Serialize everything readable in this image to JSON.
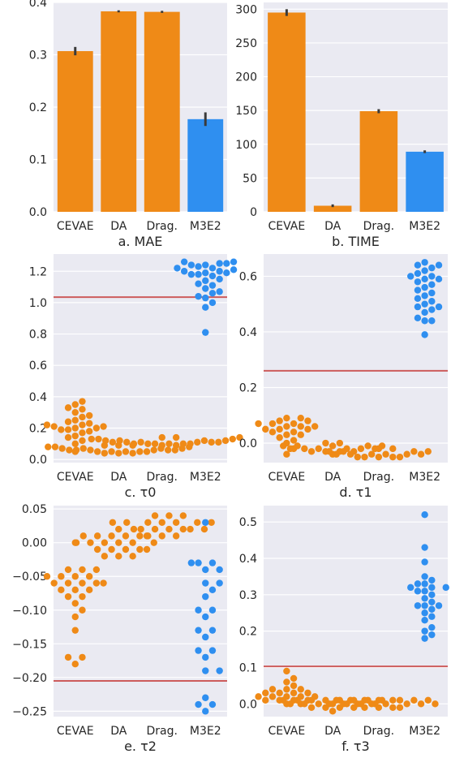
{
  "chart_data": [
    {
      "type": "bar",
      "title": "a. MAE",
      "categories": [
        "CEVAE",
        "DA",
        "Drag.",
        "M3E2"
      ],
      "values": [
        0.307,
        0.383,
        0.382,
        0.177
      ],
      "error": [
        0.008,
        0.002,
        0.002,
        0.013
      ],
      "colors": [
        "#ef8a17",
        "#ef8a17",
        "#ef8a17",
        "#2f8ff0"
      ],
      "ylim": [
        0,
        0.4
      ],
      "yticks": [
        "0.0",
        "0.1",
        "0.2",
        "0.3",
        "0.4"
      ],
      "ytick_values": [
        0,
        0.1,
        0.2,
        0.3,
        0.4
      ]
    },
    {
      "type": "bar",
      "title": "b. TIME",
      "categories": [
        "CEVAE",
        "DA",
        "Drag.",
        "M3E2"
      ],
      "values": [
        295,
        9,
        149,
        89
      ],
      "error": [
        5,
        2,
        3,
        2
      ],
      "colors": [
        "#ef8a17",
        "#ef8a17",
        "#ef8a17",
        "#2f8ff0"
      ],
      "ylim": [
        0,
        310
      ],
      "yticks": [
        "0",
        "50",
        "100",
        "150",
        "200",
        "250",
        "300"
      ],
      "ytick_values": [
        0,
        50,
        100,
        150,
        200,
        250,
        300
      ]
    },
    {
      "type": "scatter",
      "title": "c. τ0",
      "categories": [
        "CEVAE",
        "DA",
        "Drag.",
        "M3E2"
      ],
      "colors": [
        "#ef8a17",
        "#ef8a17",
        "#ef8a17",
        "#2f8ff0"
      ],
      "reference_line": 1.035,
      "ylim": [
        -0.02,
        1.31
      ],
      "yticks": [
        "0.0",
        "0.2",
        "0.4",
        "0.6",
        "0.8",
        "1.0",
        "1.2"
      ],
      "ytick_values": [
        0,
        0.2,
        0.4,
        0.6,
        0.8,
        1.0,
        1.2
      ],
      "points": [
        [
          0.05,
          0.1,
          0.12,
          0.14,
          0.15,
          0.17,
          0.18,
          0.19,
          0.19,
          0.2,
          0.2,
          0.21,
          0.21,
          0.22,
          0.22,
          0.23,
          0.24,
          0.25,
          0.27,
          0.28,
          0.3,
          0.32,
          0.33,
          0.35,
          0.37
        ],
        [
          0.04,
          0.04,
          0.04,
          0.05,
          0.05,
          0.05,
          0.05,
          0.05,
          0.06,
          0.06,
          0.06,
          0.06,
          0.06,
          0.06,
          0.07,
          0.07,
          0.07,
          0.07,
          0.08,
          0.08,
          0.08,
          0.09,
          0.09,
          0.09
        ],
        [
          0.09,
          0.09,
          0.1,
          0.1,
          0.1,
          0.1,
          0.1,
          0.1,
          0.11,
          0.11,
          0.11,
          0.11,
          0.11,
          0.11,
          0.12,
          0.12,
          0.12,
          0.12,
          0.13,
          0.13,
          0.13,
          0.14,
          0.14,
          0.14
        ],
        [
          0.81,
          0.97,
          1.0,
          1.03,
          1.04,
          1.06,
          1.07,
          1.09,
          1.11,
          1.12,
          1.14,
          1.15,
          1.17,
          1.18,
          1.18,
          1.19,
          1.19,
          1.2,
          1.2,
          1.21,
          1.22,
          1.22,
          1.23,
          1.24,
          1.24,
          1.25,
          1.25,
          1.26,
          1.26
        ]
      ]
    },
    {
      "type": "scatter",
      "title": "d. τ1",
      "categories": [
        "CEVAE",
        "DA",
        "Drag.",
        "M3E2"
      ],
      "colors": [
        "#ef8a17",
        "#ef8a17",
        "#ef8a17",
        "#2f8ff0"
      ],
      "reference_line": 0.26,
      "ylim": [
        -0.07,
        0.68
      ],
      "yticks": [
        "0.0",
        "0.2",
        "0.4",
        "0.6"
      ],
      "ytick_values": [
        0,
        0.2,
        0.4,
        0.6
      ],
      "points": [
        [
          -0.04,
          -0.02,
          0.0,
          0.01,
          0.02,
          0.03,
          0.03,
          0.04,
          0.04,
          0.05,
          0.05,
          0.05,
          0.06,
          0.06,
          0.06,
          0.07,
          0.07,
          0.07,
          0.08,
          0.08,
          0.09,
          0.09
        ],
        [
          -0.04,
          -0.03,
          -0.03,
          -0.03,
          -0.03,
          -0.02,
          -0.02,
          -0.02,
          -0.02,
          -0.02,
          -0.02,
          -0.01,
          -0.01,
          -0.01,
          -0.01,
          -0.01,
          0.0,
          0.0
        ],
        [
          -0.05,
          -0.05,
          -0.05,
          -0.05,
          -0.05,
          -0.04,
          -0.04,
          -0.04,
          -0.04,
          -0.04,
          -0.04,
          -0.03,
          -0.03,
          -0.03,
          -0.03,
          -0.02,
          -0.02
        ],
        [
          0.39,
          0.44,
          0.44,
          0.45,
          0.47,
          0.48,
          0.49,
          0.49,
          0.5,
          0.51,
          0.52,
          0.53,
          0.54,
          0.55,
          0.56,
          0.57,
          0.58,
          0.59,
          0.59,
          0.6,
          0.6,
          0.61,
          0.62,
          0.63,
          0.64,
          0.64,
          0.65
        ]
      ]
    },
    {
      "type": "scatter",
      "title": "e. τ2",
      "categories": [
        "CEVAE",
        "DA",
        "Drag.",
        "M3E2"
      ],
      "colors": [
        "#ef8a17",
        "#ef8a17",
        "#ef8a17",
        "#2f8ff0"
      ],
      "reference_line": -0.205,
      "ylim": [
        -0.258,
        0.055
      ],
      "yticks": [
        "0.05",
        "0.00",
        "−0.05",
        "−0.10",
        "−0.15",
        "−0.20",
        "−0.25"
      ],
      "ytick_values": [
        0.05,
        0,
        -0.05,
        -0.1,
        -0.15,
        -0.2,
        -0.25
      ],
      "points": [
        [
          -0.18,
          -0.17,
          -0.17,
          -0.13,
          -0.11,
          -0.1,
          -0.09,
          -0.08,
          -0.08,
          -0.07,
          -0.07,
          -0.07,
          -0.06,
          -0.06,
          -0.06,
          -0.06,
          -0.06,
          -0.05,
          -0.05,
          -0.05,
          -0.05,
          -0.04,
          -0.04,
          -0.04,
          0.0
        ],
        [
          -0.02,
          -0.02,
          -0.02,
          -0.01,
          -0.01,
          -0.01,
          -0.01,
          -0.01,
          0.0,
          0.0,
          0.0,
          0.0,
          0.0,
          0.0,
          0.01,
          0.01,
          0.01,
          0.01,
          0.01,
          0.01,
          0.02
        ],
        [
          0.01,
          0.01,
          0.01,
          0.02,
          0.02,
          0.02,
          0.02,
          0.02,
          0.02,
          0.02,
          0.03,
          0.03,
          0.03,
          0.03,
          0.03,
          0.03,
          0.03,
          0.04,
          0.04,
          0.04
        ],
        [
          -0.25,
          -0.24,
          -0.24,
          -0.23,
          -0.19,
          -0.19,
          -0.17,
          -0.16,
          -0.16,
          -0.14,
          -0.13,
          -0.13,
          -0.11,
          -0.1,
          -0.1,
          -0.08,
          -0.07,
          -0.06,
          -0.06,
          -0.04,
          -0.04,
          -0.03,
          -0.03,
          -0.03,
          0.03
        ]
      ]
    },
    {
      "type": "scatter",
      "title": "f. τ3",
      "categories": [
        "CEVAE",
        "DA",
        "Drag.",
        "M3E2"
      ],
      "colors": [
        "#ef8a17",
        "#ef8a17",
        "#ef8a17",
        "#2f8ff0"
      ],
      "reference_line": 0.103,
      "ylim": [
        -0.035,
        0.545
      ],
      "yticks": [
        "0.0",
        "0.1",
        "0.2",
        "0.3",
        "0.4",
        "0.5"
      ],
      "ytick_values": [
        0,
        0.1,
        0.2,
        0.3,
        0.4,
        0.5
      ],
      "points": [
        [
          0.0,
          0.0,
          0.01,
          0.01,
          0.01,
          0.01,
          0.02,
          0.02,
          0.02,
          0.02,
          0.02,
          0.03,
          0.03,
          0.03,
          0.03,
          0.04,
          0.04,
          0.04,
          0.05,
          0.06,
          0.07,
          0.09
        ],
        [
          -0.02,
          -0.01,
          -0.01,
          -0.01,
          -0.01,
          0.0,
          0.0,
          0.0,
          0.0,
          0.0,
          0.0,
          0.0,
          0.01,
          0.01,
          0.01,
          0.01,
          0.01,
          0.01,
          0.01,
          0.01
        ],
        [
          -0.01,
          -0.01,
          -0.01,
          -0.01,
          0.0,
          0.0,
          0.0,
          0.0,
          0.0,
          0.0,
          0.0,
          0.0,
          0.01,
          0.01,
          0.01,
          0.01,
          0.01,
          0.01,
          0.01,
          0.01
        ],
        [
          0.18,
          0.19,
          0.2,
          0.21,
          0.23,
          0.24,
          0.25,
          0.26,
          0.27,
          0.27,
          0.27,
          0.28,
          0.29,
          0.3,
          0.31,
          0.31,
          0.32,
          0.32,
          0.32,
          0.33,
          0.33,
          0.34,
          0.35,
          0.39,
          0.43,
          0.52
        ]
      ]
    }
  ]
}
